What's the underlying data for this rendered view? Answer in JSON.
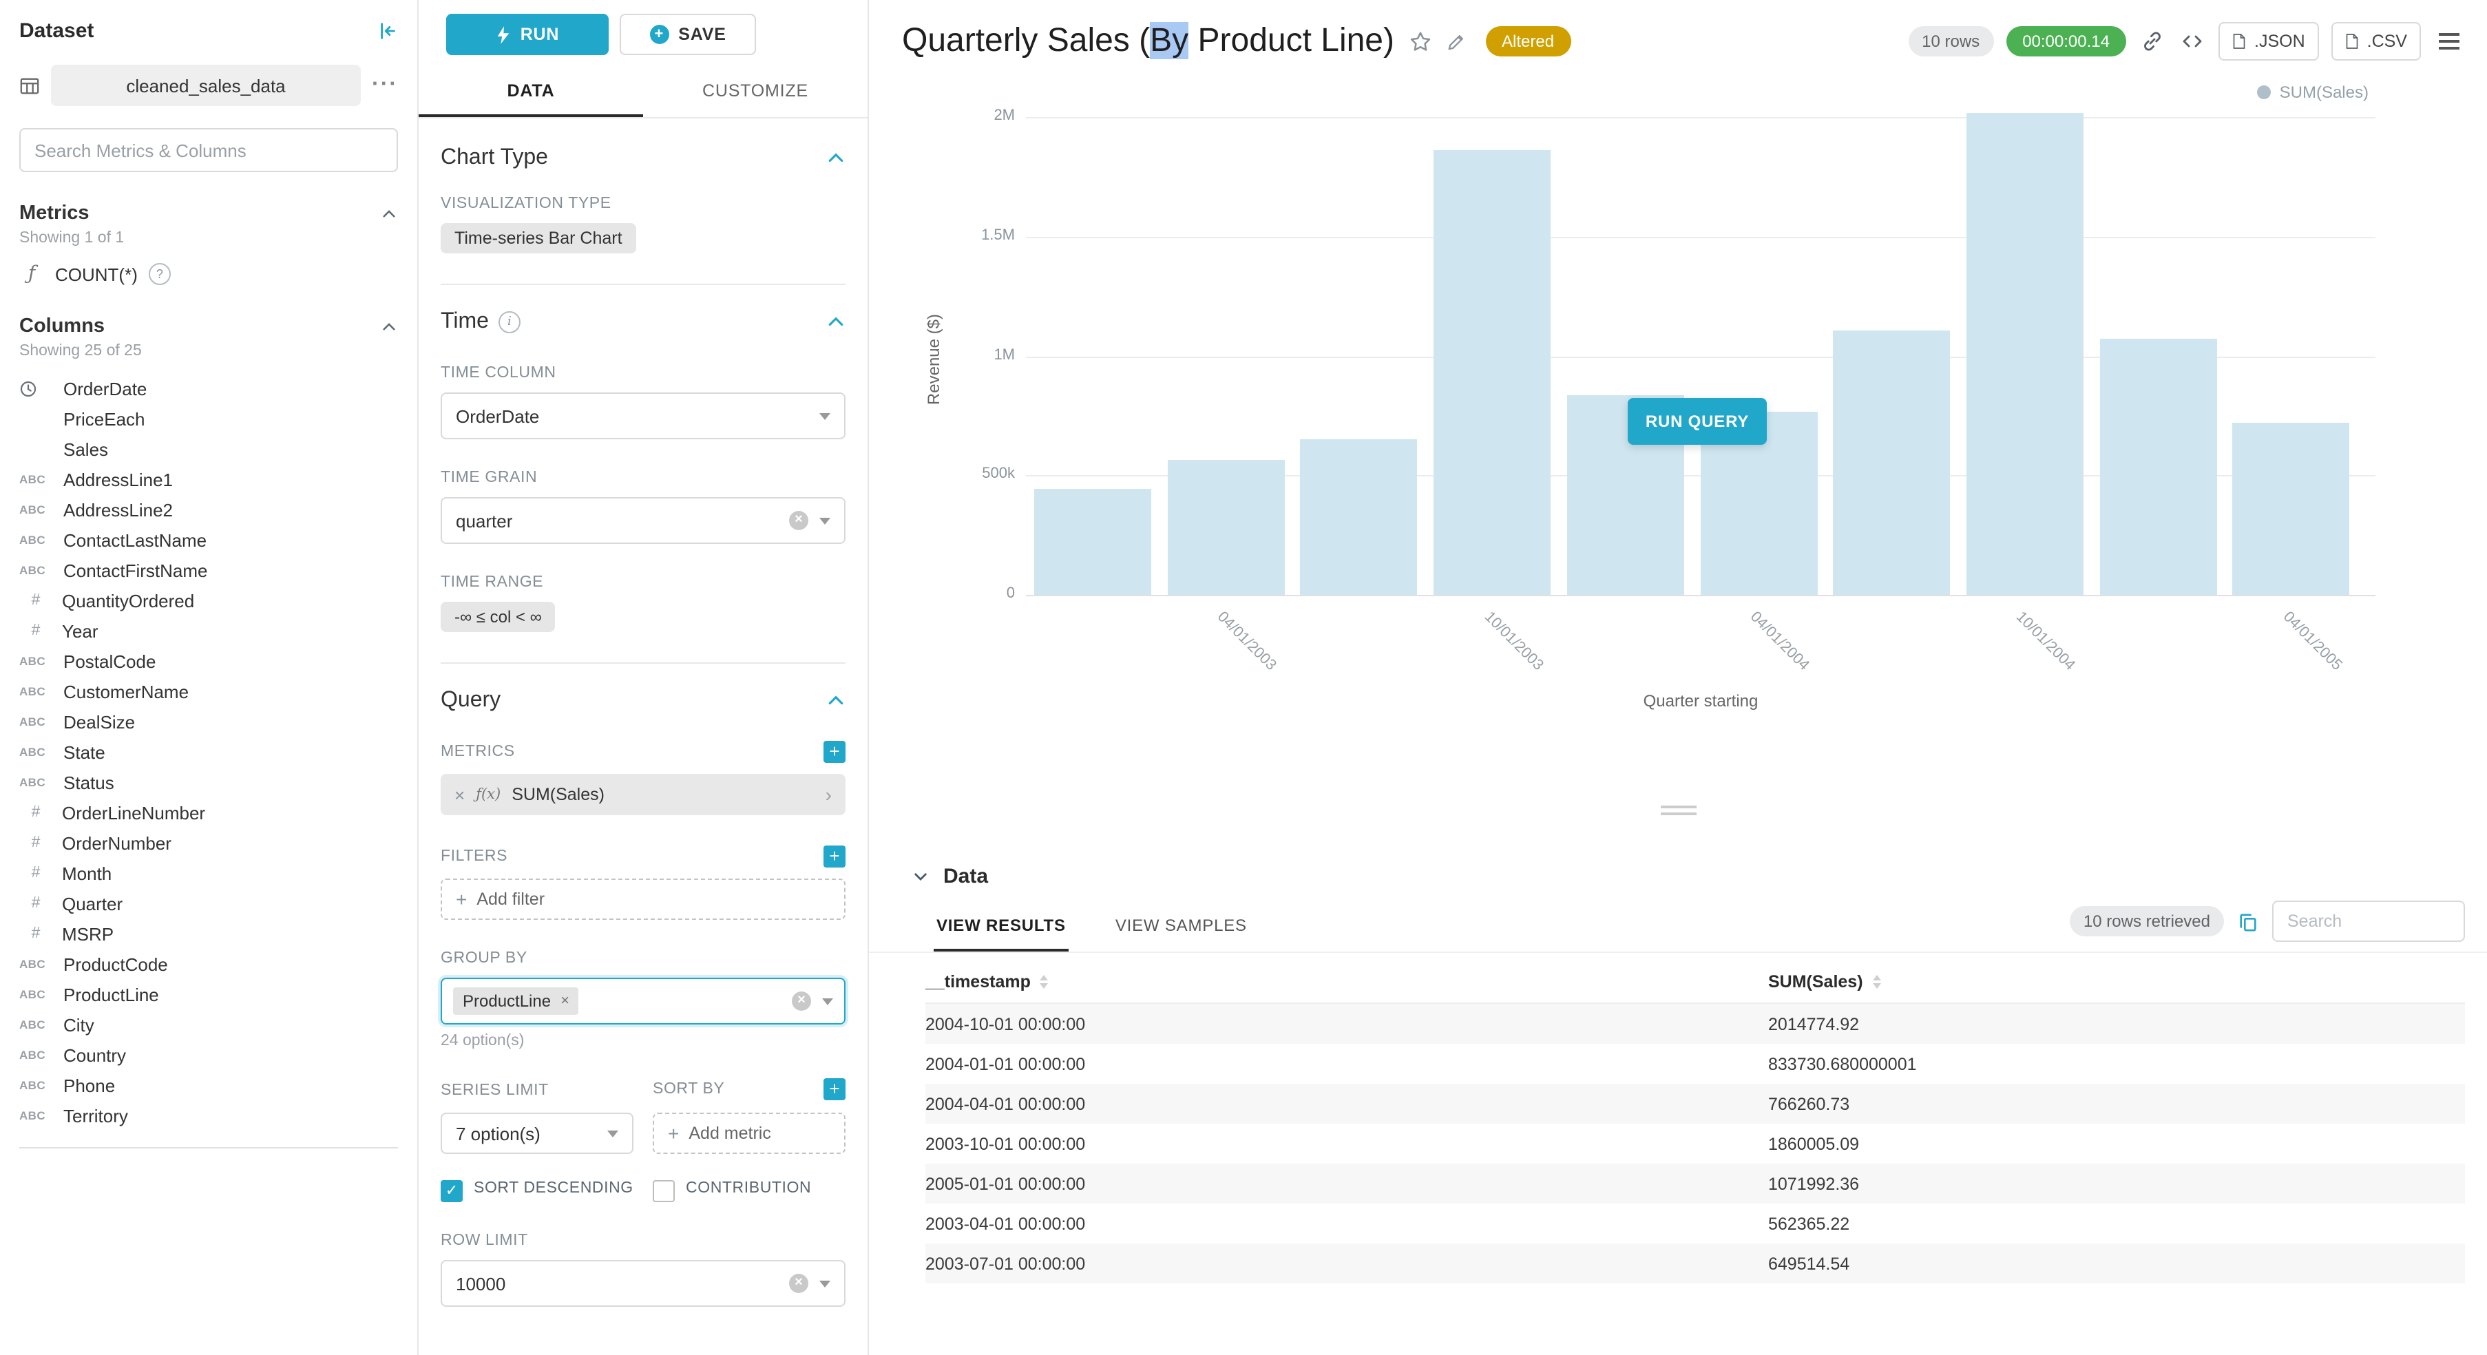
{
  "colors": {
    "accent": "#20a7c9",
    "timer_green": "#4cb152",
    "altered_amber": "#cfa000",
    "bar_fill": "#cfe6f0",
    "selection_blue": "#a9c9f5"
  },
  "dataset_panel": {
    "title": "Dataset",
    "dataset_name": "cleaned_sales_data",
    "search_placeholder": "Search Metrics & Columns",
    "metrics_header": "Metrics",
    "metrics_count": "Showing 1 of 1",
    "metrics": [
      {
        "type": "function",
        "name": "COUNT(*)"
      }
    ],
    "columns_header": "Columns",
    "columns_count": "Showing 25 of 25",
    "columns": [
      {
        "type": "time",
        "name": "OrderDate"
      },
      {
        "type": "none",
        "name": "PriceEach"
      },
      {
        "type": "none",
        "name": "Sales"
      },
      {
        "type": "text",
        "name": "AddressLine1"
      },
      {
        "type": "text",
        "name": "AddressLine2"
      },
      {
        "type": "text",
        "name": "ContactLastName"
      },
      {
        "type": "text",
        "name": "ContactFirstName"
      },
      {
        "type": "num",
        "name": "QuantityOrdered"
      },
      {
        "type": "num",
        "name": "Year"
      },
      {
        "type": "text",
        "name": "PostalCode"
      },
      {
        "type": "text",
        "name": "CustomerName"
      },
      {
        "type": "text",
        "name": "DealSize"
      },
      {
        "type": "text",
        "name": "State"
      },
      {
        "type": "text",
        "name": "Status"
      },
      {
        "type": "num",
        "name": "OrderLineNumber"
      },
      {
        "type": "num",
        "name": "OrderNumber"
      },
      {
        "type": "num",
        "name": "Month"
      },
      {
        "type": "num",
        "name": "Quarter"
      },
      {
        "type": "num",
        "name": "MSRP"
      },
      {
        "type": "text",
        "name": "ProductCode"
      },
      {
        "type": "text",
        "name": "ProductLine"
      },
      {
        "type": "text",
        "name": "City"
      },
      {
        "type": "text",
        "name": "Country"
      },
      {
        "type": "text",
        "name": "Phone"
      },
      {
        "type": "text",
        "name": "Territory"
      }
    ]
  },
  "controls": {
    "run_label": "RUN",
    "save_label": "SAVE",
    "data_tab": "DATA",
    "customize_tab": "CUSTOMIZE",
    "chart_type_section": "Chart Type",
    "visualization_type_label": "VISUALIZATION TYPE",
    "visualization_type": "Time-series Bar Chart",
    "time_section": "Time",
    "time_column_label": "TIME COLUMN",
    "time_column": "OrderDate",
    "time_grain_label": "TIME GRAIN",
    "time_grain": "quarter",
    "time_range_label": "TIME RANGE",
    "time_range": "-∞ ≤ col < ∞",
    "query_section": "Query",
    "metrics_label": "METRICS",
    "metric_fx": "ƒ(x)",
    "metric_chip": "SUM(Sales)",
    "filters_label": "FILTERS",
    "add_filter": "Add filter",
    "group_by_label": "GROUP BY",
    "group_by_chip": "ProductLine",
    "group_by_options": "24 option(s)",
    "series_limit_label": "SERIES LIMIT",
    "series_limit_value": "7 option(s)",
    "sort_by_label": "SORT BY",
    "add_metric": "Add metric",
    "sort_descending_label": "SORT DESCENDING",
    "contribution_label": "CONTRIBUTION",
    "row_limit_label": "ROW LIMIT",
    "row_limit_value": "10000"
  },
  "header": {
    "title_pre": "Quarterly Sales (",
    "title_highlight": "By",
    "title_post": " Product Line)",
    "altered_badge": "Altered",
    "rows_badge": "10 rows",
    "timer": "00:00:00.14",
    "json_button": ".JSON",
    "csv_button": ".CSV"
  },
  "chart_data": {
    "type": "bar",
    "title": "Quarterly Sales (By Product Line)",
    "x": [
      "2003-01-01",
      "2003-04-01",
      "2003-07-01",
      "2003-10-01",
      "2004-01-01",
      "2004-04-01",
      "2004-07-01",
      "2004-10-01",
      "2005-01-01",
      "2005-04-01"
    ],
    "series": [
      {
        "name": "SUM(Sales)",
        "values": [
          445094.69,
          562365.22,
          649514.54,
          1860005.09,
          833730.68,
          766260.73,
          1109396.27,
          2014774.92,
          1071992.36,
          719494.35
        ]
      }
    ],
    "xlabel": "Quarter starting",
    "ylabel": "Revenue ($)",
    "ylim": [
      0,
      2000000
    ],
    "yticks": [
      "0",
      "500k",
      "1M",
      "1.5M",
      "2M"
    ],
    "x_tick_labels": [
      "04/01/2003",
      "10/01/2003",
      "04/01/2004",
      "10/01/2004",
      "04/01/2005"
    ],
    "x_tick_bar_index": [
      1,
      3,
      5,
      7,
      9
    ],
    "legend": "SUM(Sales)",
    "grid": true,
    "legend_position": "top-right",
    "bar_color": "#cfe6f0",
    "run_query_label": "RUN QUERY"
  },
  "results": {
    "section_title": "Data",
    "results_tab": "VIEW RESULTS",
    "samples_tab": "VIEW SAMPLES",
    "rows_retrieved": "10 rows retrieved",
    "search_placeholder": "Search",
    "col_timestamp": "__timestamp",
    "col_sum": "SUM(Sales)",
    "rows": [
      [
        "2004-10-01 00:00:00",
        "2014774.92"
      ],
      [
        "2004-01-01 00:00:00",
        "833730.680000001"
      ],
      [
        "2004-04-01 00:00:00",
        "766260.73"
      ],
      [
        "2003-10-01 00:00:00",
        "1860005.09"
      ],
      [
        "2005-01-01 00:00:00",
        "1071992.36"
      ],
      [
        "2003-04-01 00:00:00",
        "562365.22"
      ],
      [
        "2003-07-01 00:00:00",
        "649514.54"
      ]
    ]
  }
}
